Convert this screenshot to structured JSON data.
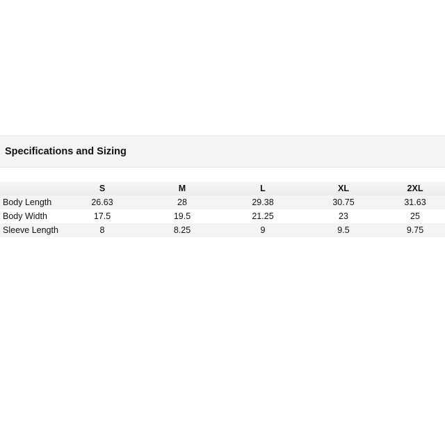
{
  "title": "Specifications and Sizing",
  "sizes": [
    "S",
    "M",
    "L",
    "XL",
    "2XL"
  ],
  "rows": [
    {
      "label": "Body Length",
      "values": [
        "26.63",
        "28",
        "29.38",
        "30.75",
        "31.63"
      ]
    },
    {
      "label": "Body Width",
      "values": [
        "17.5",
        "19.5",
        "21.25",
        "23",
        "25"
      ]
    },
    {
      "label": "Sleeve Length",
      "values": [
        "8",
        "8.25",
        "9",
        "9.5",
        "9.75"
      ]
    }
  ]
}
